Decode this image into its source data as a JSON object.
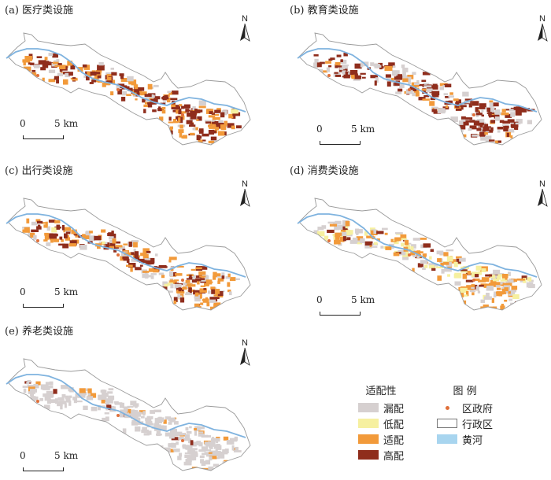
{
  "panels": [
    {
      "id": "a",
      "title": "(a) 医疗类设施"
    },
    {
      "id": "b",
      "title": "(b) 教育类设施"
    },
    {
      "id": "c",
      "title": "(c) 出行类设施"
    },
    {
      "id": "d",
      "title": "(d) 消费类设施"
    },
    {
      "id": "e",
      "title": "(e) 养老类设施"
    }
  ],
  "north_label": "N",
  "scale": {
    "zero": "0",
    "label": "5 km"
  },
  "legend": {
    "match_title": "适配性",
    "match_items": [
      {
        "label": "漏配",
        "color": "#d6d0d0"
      },
      {
        "label": "低配",
        "color": "#f6f0a0"
      },
      {
        "label": "适配",
        "color": "#f29a3a"
      },
      {
        "label": "高配",
        "color": "#8f2d1c"
      }
    ],
    "map_title": "图 例",
    "map_items": [
      {
        "label": "区政府",
        "symbol": "dot"
      },
      {
        "label": "行政区",
        "symbol": "outline"
      },
      {
        "label": "黄河",
        "symbol": "river"
      }
    ]
  },
  "colors": {
    "missing": "#d6d0d0",
    "low": "#f6f0a0",
    "match": "#f29a3a",
    "high": "#8f2d1c",
    "river": "#7fb3df",
    "boundary": "#9a9a9a",
    "gov_dot": "#e0703a"
  }
}
